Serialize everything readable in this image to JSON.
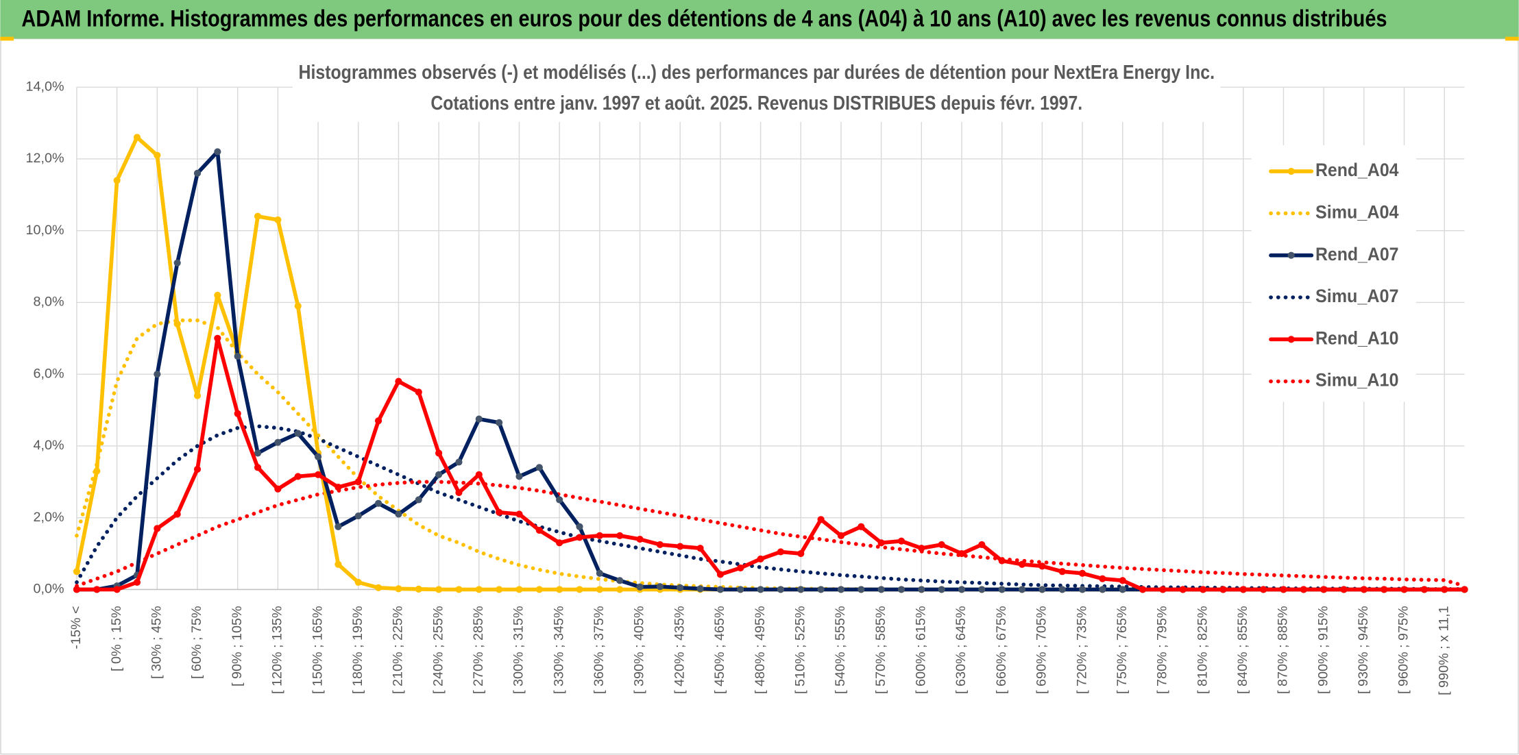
{
  "header": {
    "title": "ADAM Informe. Histogrammes des performances en euros pour des détentions de 4 ans (A04) à 10 ans (A10) avec les revenus connus distribués"
  },
  "chart_data": {
    "type": "line",
    "title": "Histogrammes observés (-) et modélisés (...) des performances par durées de détention pour NextEra Energy Inc.",
    "subtitle": "Cotations entre janv. 1997 et août. 2025. Revenus DISTRIBUES depuis févr. 1997.",
    "categories": [
      "-15% <",
      null,
      "[ 0% ; 15%",
      null,
      "[ 30% ; 45%",
      null,
      "[ 60% ; 75%",
      null,
      "[ 90% ; 105%",
      null,
      "[ 120% ; 135%",
      null,
      "[ 150% ; 165%",
      null,
      "[ 180% ; 195%",
      null,
      "[ 210% ; 225%",
      null,
      "[ 240% ; 255%",
      null,
      "[ 270% ; 285%",
      null,
      "[ 300% ; 315%",
      null,
      "[ 330% ; 345%",
      null,
      "[ 360% ; 375%",
      null,
      "[ 390% ; 405%",
      null,
      "[ 420% ; 435%",
      null,
      "[ 450% ; 465%",
      null,
      "[ 480% ; 495%",
      null,
      "[ 510% ; 525%",
      null,
      "[ 540% ; 555%",
      null,
      "[ 570% ; 585%",
      null,
      "[ 600% ; 615%",
      null,
      "[ 630% ; 645%",
      null,
      "[ 660% ; 675%",
      null,
      "[ 690% ; 705%",
      null,
      "[ 720% ; 735%",
      null,
      "[ 750% ; 765%",
      null,
      "[ 780% ; 795%",
      null,
      "[ 810% ; 825%",
      null,
      "[ 840% ; 855%",
      null,
      "[ 870% ; 885%",
      null,
      "[ 900% ; 915%",
      null,
      "[ 930% ; 945%",
      null,
      "[ 960% ; 975%",
      null,
      "[ 990% ; x 11,1",
      null
    ],
    "series": [
      {
        "name": "Rend_A04",
        "color": "#ffc000",
        "style": "solid",
        "values": [
          0.5,
          3.3,
          11.4,
          12.6,
          12.1,
          7.4,
          5.4,
          8.2,
          6.6,
          10.4,
          10.3,
          7.9,
          3.8,
          0.7,
          0.2,
          0.05,
          0.02,
          0.01,
          0,
          0,
          0,
          0,
          0,
          0,
          0,
          0,
          0,
          0,
          0,
          0,
          0,
          0,
          0,
          0,
          0,
          0,
          0,
          0,
          0,
          0,
          0,
          0,
          0,
          0,
          0,
          0,
          0,
          0,
          0,
          0,
          0,
          0,
          0,
          0,
          0,
          0,
          0,
          0,
          0,
          0,
          0,
          0,
          0,
          0,
          0,
          0,
          0,
          0,
          0,
          0
        ]
      },
      {
        "name": "Simu_A04",
        "color": "#ffc000",
        "style": "dotted",
        "values": [
          1.5,
          3.5,
          5.8,
          7.0,
          7.4,
          7.5,
          7.5,
          7.3,
          6.6,
          6.0,
          5.5,
          4.9,
          4.3,
          3.7,
          3.1,
          2.6,
          2.2,
          1.8,
          1.5,
          1.3,
          1.05,
          0.85,
          0.68,
          0.55,
          0.44,
          0.36,
          0.29,
          0.23,
          0.18,
          0.14,
          0.11,
          0.09,
          0.07,
          0.05,
          0.04,
          0.03,
          0.02,
          0.02,
          0.01,
          0.01,
          0,
          0,
          0,
          0,
          0,
          0,
          0,
          0,
          0,
          0,
          0,
          0,
          0,
          0,
          0,
          0,
          0,
          0,
          0,
          0,
          0,
          0,
          0,
          0,
          0,
          0,
          0,
          0,
          0,
          0
        ]
      },
      {
        "name": "Rend_A07",
        "color": "#002060",
        "style": "solid",
        "values": [
          0,
          0,
          0.1,
          0.4,
          6.0,
          9.1,
          11.6,
          12.2,
          6.5,
          3.8,
          4.1,
          4.35,
          3.7,
          1.75,
          2.05,
          2.4,
          2.1,
          2.5,
          3.2,
          3.55,
          4.75,
          4.65,
          3.15,
          3.4,
          2.5,
          1.75,
          0.45,
          0.25,
          0.07,
          0.08,
          0.05,
          0.02,
          0,
          0,
          0,
          0,
          0,
          0,
          0,
          0,
          0,
          0,
          0,
          0,
          0,
          0,
          0,
          0,
          0,
          0,
          0,
          0,
          0,
          0,
          0,
          0,
          0,
          0,
          0,
          0,
          0,
          0,
          0,
          0,
          0,
          0,
          0,
          0,
          0,
          0
        ]
      },
      {
        "name": "Simu_A07",
        "color": "#002060",
        "style": "dotted",
        "values": [
          0.2,
          1.2,
          2.0,
          2.6,
          3.1,
          3.6,
          4.0,
          4.3,
          4.5,
          4.55,
          4.5,
          4.4,
          4.2,
          3.95,
          3.7,
          3.45,
          3.2,
          2.95,
          2.7,
          2.5,
          2.3,
          2.1,
          1.9,
          1.75,
          1.6,
          1.45,
          1.35,
          1.25,
          1.15,
          1.05,
          0.95,
          0.85,
          0.78,
          0.7,
          0.62,
          0.56,
          0.5,
          0.45,
          0.4,
          0.36,
          0.32,
          0.28,
          0.25,
          0.22,
          0.2,
          0.18,
          0.16,
          0.14,
          0.12,
          0.11,
          0.1,
          0.09,
          0.08,
          0.07,
          0.06,
          0.06,
          0.05,
          0.05,
          0.04,
          0.04,
          0.03,
          0.03,
          0.03,
          0.02,
          0.02,
          0.02,
          0.02,
          0.01,
          0.01,
          0.01
        ]
      },
      {
        "name": "Rend_A10",
        "color": "#ff0000",
        "style": "solid",
        "values": [
          0,
          0,
          0,
          0.2,
          1.7,
          2.1,
          3.35,
          7.0,
          4.9,
          3.4,
          2.8,
          3.15,
          3.2,
          2.85,
          3.0,
          4.7,
          5.8,
          5.5,
          3.8,
          2.7,
          3.2,
          2.15,
          2.1,
          1.65,
          1.3,
          1.45,
          1.5,
          1.5,
          1.4,
          1.25,
          1.2,
          1.15,
          0.42,
          0.6,
          0.85,
          1.05,
          1.0,
          1.95,
          1.5,
          1.75,
          1.3,
          1.35,
          1.15,
          1.25,
          1.0,
          1.25,
          0.8,
          0.7,
          0.65,
          0.5,
          0.45,
          0.3,
          0.25,
          0,
          0,
          0,
          0,
          0,
          0,
          0,
          0,
          0,
          0,
          0,
          0,
          0,
          0,
          0,
          0,
          0
        ]
      },
      {
        "name": "Simu_A10",
        "color": "#ff0000",
        "style": "dotted",
        "values": [
          0.1,
          0.3,
          0.5,
          0.75,
          1.0,
          1.25,
          1.5,
          1.75,
          1.95,
          2.15,
          2.35,
          2.5,
          2.65,
          2.75,
          2.85,
          2.92,
          2.97,
          3.0,
          3.0,
          2.98,
          2.95,
          2.9,
          2.83,
          2.75,
          2.65,
          2.55,
          2.45,
          2.35,
          2.25,
          2.15,
          2.05,
          1.95,
          1.85,
          1.75,
          1.65,
          1.55,
          1.47,
          1.4,
          1.32,
          1.25,
          1.18,
          1.12,
          1.06,
          1.0,
          0.95,
          0.9,
          0.85,
          0.8,
          0.76,
          0.72,
          0.68,
          0.64,
          0.6,
          0.57,
          0.54,
          0.51,
          0.48,
          0.46,
          0.43,
          0.41,
          0.39,
          0.37,
          0.35,
          0.33,
          0.31,
          0.3,
          0.28,
          0.27,
          0.26,
          0.1
        ]
      }
    ],
    "ylim": [
      0,
      14
    ],
    "yticks": [
      {
        "value": 0,
        "label": "0,0%"
      },
      {
        "value": 2,
        "label": "2,0%"
      },
      {
        "value": 4,
        "label": "4,0%"
      },
      {
        "value": 6,
        "label": "6,0%"
      },
      {
        "value": 8,
        "label": "8,0%"
      },
      {
        "value": 10,
        "label": "10,0%"
      },
      {
        "value": 12,
        "label": "12,0%"
      },
      {
        "value": 14,
        "label": "14,0%"
      }
    ],
    "grid": true,
    "legend": "right"
  }
}
